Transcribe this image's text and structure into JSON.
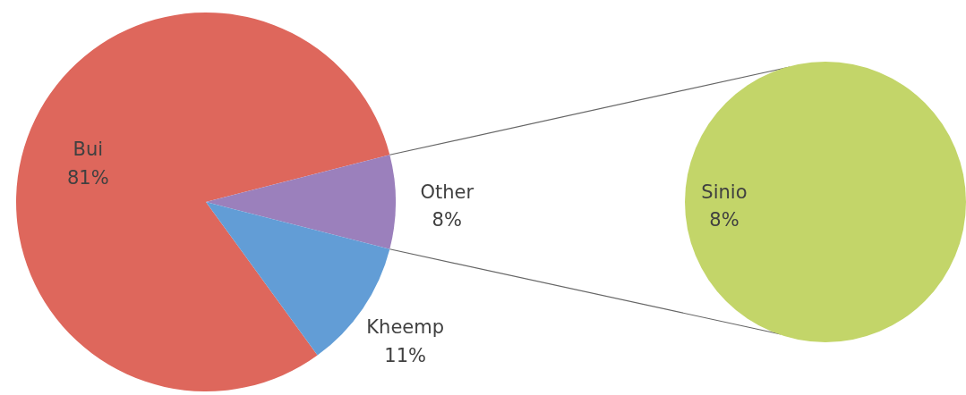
{
  "chart_data": [
    {
      "type": "pie",
      "categories": [
        "Bui",
        "Other",
        "Kheemp"
      ],
      "values": [
        81,
        8,
        11
      ],
      "colors": [
        "#de675c",
        "#9b80bc",
        "#629dd6"
      ],
      "value_labels": [
        "81%",
        "8%",
        "11%"
      ]
    },
    {
      "type": "pie",
      "categories": [
        "Sinio"
      ],
      "values": [
        8
      ],
      "colors": [
        "#c3d569"
      ],
      "value_labels": [
        "8%"
      ]
    }
  ]
}
